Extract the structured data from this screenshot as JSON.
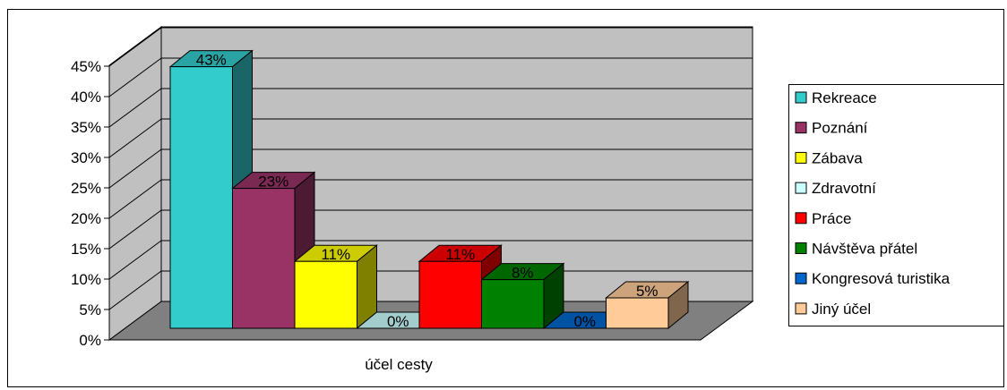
{
  "chart_data": {
    "type": "bar",
    "title": "",
    "xlabel": "účel cesty",
    "ylabel": "",
    "ylim": [
      0,
      45
    ],
    "yticks": [
      "0%",
      "5%",
      "10%",
      "15%",
      "20%",
      "25%",
      "30%",
      "35%",
      "40%",
      "45%"
    ],
    "grid": true,
    "legend_position": "right",
    "categories": [
      "účel cesty"
    ],
    "series": [
      {
        "name": "Rekreace",
        "value": 43,
        "label": "43%",
        "color": "#33CCCC"
      },
      {
        "name": "Poznání",
        "value": 23,
        "label": "23%",
        "color": "#993366"
      },
      {
        "name": "Zábava",
        "value": 11,
        "label": "11%",
        "color": "#FFFF00"
      },
      {
        "name": "Zdravotní",
        "value": 0,
        "label": "0%",
        "color": "#CCFFFF"
      },
      {
        "name": "Práce",
        "value": 11,
        "label": "11%",
        "color": "#FF0000"
      },
      {
        "name": "Návštěva přátel",
        "value": 8,
        "label": "8%",
        "color": "#008000"
      },
      {
        "name": "Kongresová turistika",
        "value": 0,
        "label": "0%",
        "color": "#0066CC"
      },
      {
        "name": "Jiný účel",
        "value": 5,
        "label": "5%",
        "color": "#FFCC99"
      }
    ]
  }
}
